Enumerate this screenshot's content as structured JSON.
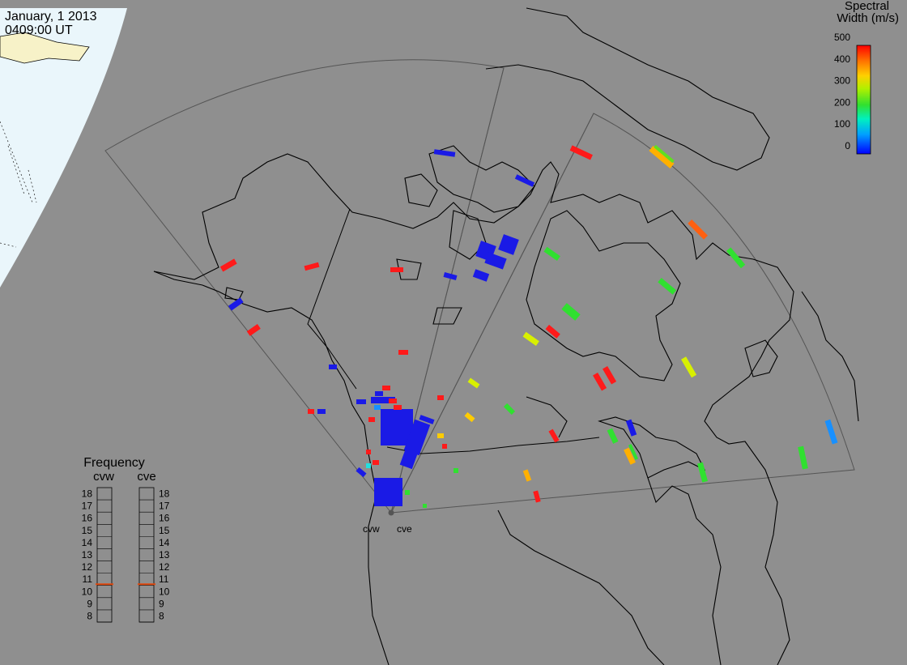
{
  "header": {
    "date": "January, 1 2013",
    "time": "0409:00 UT"
  },
  "colorbar": {
    "title_line1": "Spectral",
    "title_line2": "Width (m/s)",
    "ticks": [
      "500",
      "400",
      "300",
      "200",
      "100",
      "0"
    ]
  },
  "frequency_panel": {
    "title": "Frequency",
    "radars": [
      "cvw",
      "cve"
    ],
    "scale": [
      "18",
      "17",
      "16",
      "15",
      "14",
      "13",
      "12",
      "11",
      "10",
      "9",
      "8"
    ],
    "cvw_value": 10.6,
    "cve_value": 10.6
  },
  "radar_site": {
    "left_label": "cvw",
    "right_label": "cve"
  },
  "colors": {
    "ocean": "#8f8f8f",
    "day_side": "#eaf6fb",
    "land_line": "#000000",
    "marker": "#e04a10"
  }
}
